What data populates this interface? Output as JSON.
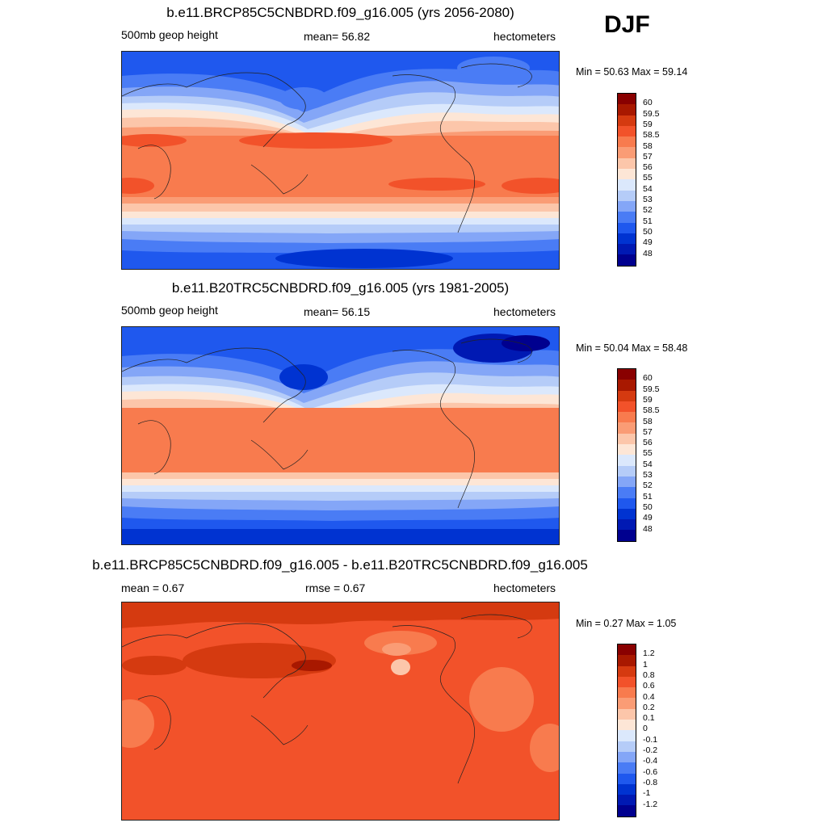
{
  "season": "DJF",
  "colors": {
    "s48": "#00008f",
    "s49": "#0019b3",
    "s50": "#0033d1",
    "s51": "#1f58ee",
    "s52": "#4a7cf5",
    "s53": "#84a6f7",
    "s54": "#b5ccf8",
    "s55": "#dbe8fc",
    "s56": "#fde6d6",
    "s57": "#fcc6aa",
    "s58": "#fa9c75",
    "s585": "#f87b4e",
    "s59": "#f2522a",
    "s595": "#d53a10",
    "s60": "#a81800",
    "s61": "#890000"
  },
  "chart_data": [
    {
      "type": "contour-map",
      "title": "b.e11.BRCP85C5CNBDRD.f09_g16.005 (yrs 2056-2080)",
      "left_label": "500mb geop height",
      "center_label": "mean=  56.82",
      "units": "hectometers",
      "min_max": "Min =  50.63 Max =  59.14",
      "min": 50.63,
      "max": 59.14,
      "mean": 56.82,
      "colorbar_labels": [
        "60",
        "59.5",
        "59",
        "58.5",
        "58",
        "57",
        "56",
        "55",
        "54",
        "53",
        "52",
        "51",
        "50",
        "49",
        "48"
      ]
    },
    {
      "type": "contour-map",
      "title": "b.e11.B20TRC5CNBDRD.f09_g16.005 (yrs 1981-2005)",
      "left_label": "500mb geop height",
      "center_label": "mean=  56.15",
      "units": "hectometers",
      "min_max": "Min =  50.04 Max =  58.48",
      "min": 50.04,
      "max": 58.48,
      "mean": 56.15,
      "colorbar_labels": [
        "60",
        "59.5",
        "59",
        "58.5",
        "58",
        "57",
        "56",
        "55",
        "54",
        "53",
        "52",
        "51",
        "50",
        "49",
        "48"
      ]
    },
    {
      "type": "contour-map",
      "title": "b.e11.BRCP85C5CNBDRD.f09_g16.005 - b.e11.B20TRC5CNBDRD.f09_g16.005",
      "left_label": "mean =   0.67",
      "center_label": "rmse =   0.67",
      "units": "hectometers",
      "min_max": "Min =   0.27 Max =   1.05",
      "min": 0.27,
      "max": 1.05,
      "mean": 0.67,
      "rmse": 0.67,
      "colorbar_labels": [
        "1.2",
        "1",
        "0.8",
        "0.6",
        "0.4",
        "0.2",
        "0.1",
        "0",
        "-0.1",
        "-0.2",
        "-0.4",
        "-0.6",
        "-0.8",
        "-1",
        "-1.2"
      ]
    }
  ]
}
